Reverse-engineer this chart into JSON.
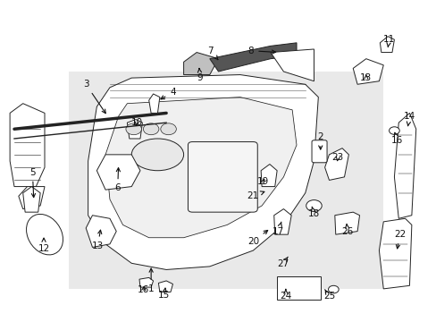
{
  "bg_color": "#ffffff",
  "line_color": "#222222",
  "label_color": "#111111",
  "label_fontsize": 7.5,
  "shade_color": "#d8d8d8",
  "shade_alpha": 0.55
}
